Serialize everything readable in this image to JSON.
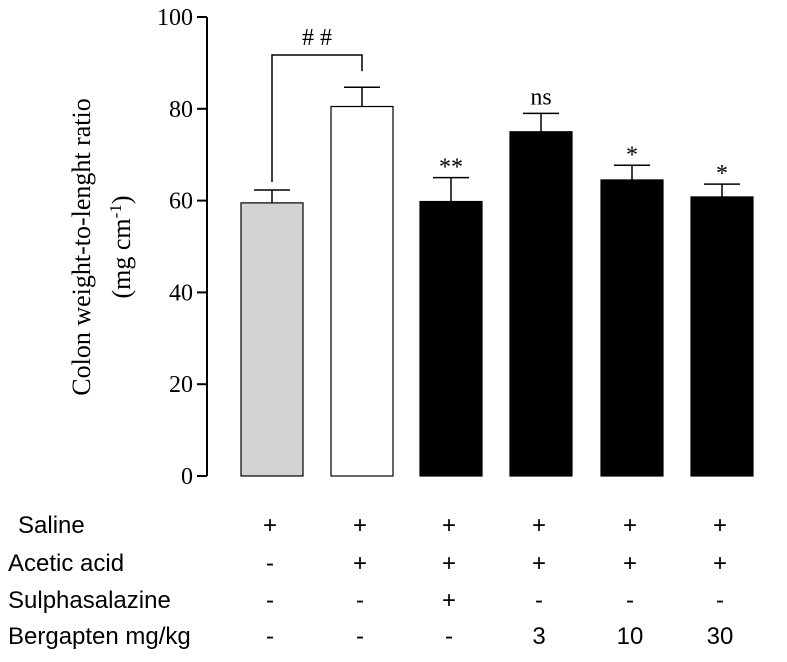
{
  "chart_data": {
    "type": "bar",
    "title": "",
    "xlabel": "",
    "ylabel": "Colon weight-to-lenght ratio",
    "ylabel_unit": "(mg cm",
    "ylabel_unit_sup": "-1",
    "ylabel_unit_close": ")",
    "ylim": [
      0,
      100
    ],
    "yticks": [
      0,
      20,
      40,
      60,
      80,
      100
    ],
    "grid": false,
    "values": [
      59.5,
      80.5,
      59.8,
      75.0,
      64.5,
      60.8
    ],
    "errors": [
      2.8,
      4.2,
      5.2,
      4.0,
      3.2,
      2.8
    ],
    "colors": [
      "#d3d3d3",
      "#ffffff",
      "#000000",
      "#000000",
      "#000000",
      "#000000"
    ],
    "significance": [
      "",
      "",
      "**",
      "ns",
      "*",
      "*"
    ],
    "bracket": {
      "from": 0,
      "to": 1,
      "label": "# #"
    },
    "groups": [
      {
        "name": "Saline",
        "values": [
          "+",
          "+",
          "+",
          "+",
          "+",
          "+"
        ]
      },
      {
        "name": "Acetic acid",
        "values": [
          "-",
          "+",
          "+",
          "+",
          "+",
          "+"
        ]
      },
      {
        "name": "Sulphasalazine",
        "values": [
          "-",
          "-",
          "+",
          "-",
          "-",
          "-"
        ]
      },
      {
        "name": "Bergapten mg/kg",
        "values": [
          "-",
          "-",
          "-",
          "3",
          "10",
          "30"
        ]
      }
    ]
  }
}
